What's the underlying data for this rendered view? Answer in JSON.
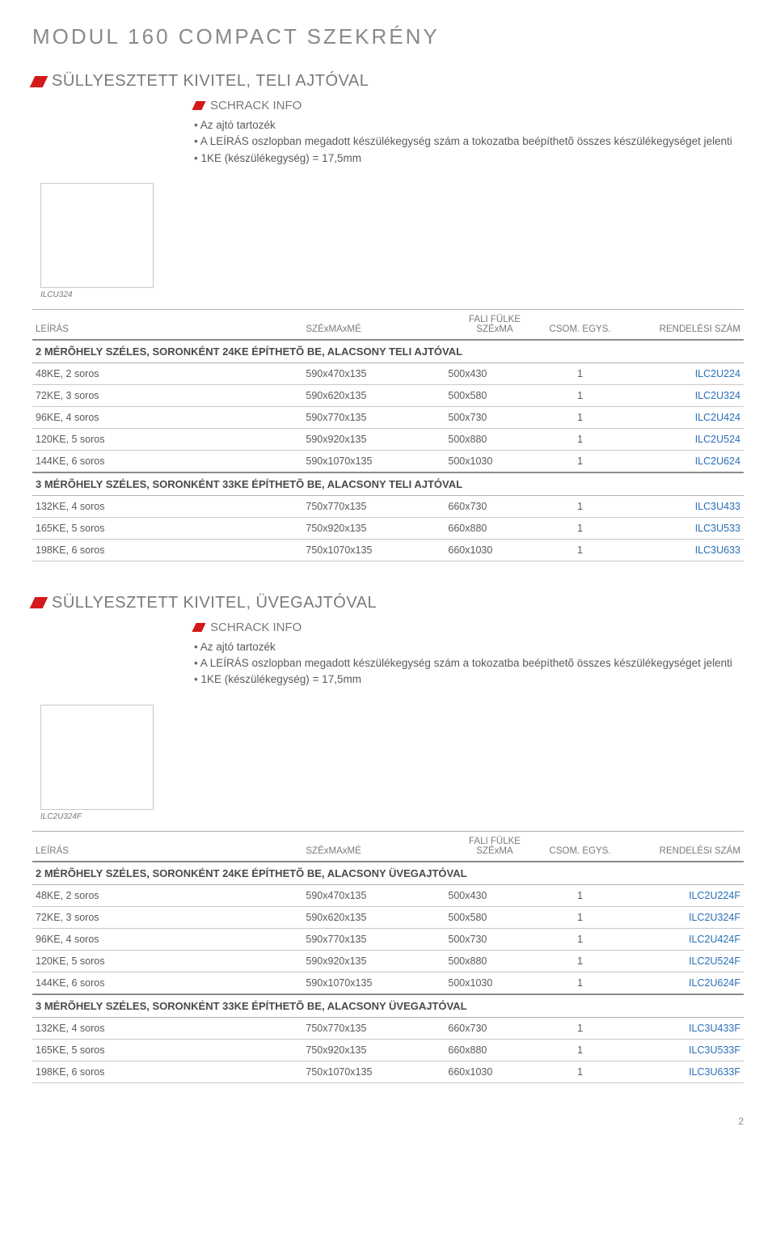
{
  "page_title": "MODUL 160 COMPACT SZEKRÉNY",
  "columns": {
    "c1": "LEÍRÁS",
    "c2": "SZÉxMAxMÉ",
    "c3_line1": "FALI FÜLKE",
    "c3_line2": "SZÉxMA",
    "c4": "CSOM. EGYS.",
    "c5": "RENDELÉSI SZÁM"
  },
  "info_label": "SCHRACK INFO",
  "bullets": [
    "Az ajtó tartozék",
    "A LEÍRÁS oszlopban megadott  készülékegység szám a tokozatba beépíthetõ összes készülékegységet jelenti",
    "1KE (készülékegység) = 17,5mm"
  ],
  "sections": [
    {
      "title": "SÜLLYESZTETT KIVITEL, TELI AJTÓVAL",
      "caption": "ILCU324",
      "groups": [
        {
          "header": "2 MÉRÕHELY SZÉLES, SORONKÉNT 24KE ÉPÍTHETÕ BE, ALACSONY TELI AJTÓVAL",
          "rows": [
            [
              "48KE, 2 soros",
              "590x470x135",
              "500x430",
              "1",
              "ILC2U224"
            ],
            [
              "72KE, 3 soros",
              "590x620x135",
              "500x580",
              "1",
              "ILC2U324"
            ],
            [
              "96KE, 4 soros",
              "590x770x135",
              "500x730",
              "1",
              "ILC2U424"
            ],
            [
              "120KE, 5 soros",
              "590x920x135",
              "500x880",
              "1",
              "ILC2U524"
            ],
            [
              "144KE, 6 soros",
              "590x1070x135",
              "500x1030",
              "1",
              "ILC2U624"
            ]
          ]
        },
        {
          "header": "3 MÉRÕHELY SZÉLES, SORONKÉNT 33KE ÉPÍTHETÕ BE, ALACSONY TELI AJTÓVAL",
          "rows": [
            [
              "132KE, 4 soros",
              "750x770x135",
              "660x730",
              "1",
              "ILC3U433"
            ],
            [
              "165KE, 5 soros",
              "750x920x135",
              "660x880",
              "1",
              "ILC3U533"
            ],
            [
              "198KE, 6 soros",
              "750x1070x135",
              "660x1030",
              "1",
              "ILC3U633"
            ]
          ]
        }
      ]
    },
    {
      "title": "SÜLLYESZTETT KIVITEL, ÜVEGAJTÓVAL",
      "caption": "ILC2U324F",
      "groups": [
        {
          "header": "2 MÉRÕHELY SZÉLES, SORONKÉNT 24KE ÉPÍTHETÕ BE, ALACSONY ÜVEGAJTÓVAL",
          "rows": [
            [
              "48KE, 2 soros",
              "590x470x135",
              "500x430",
              "1",
              "ILC2U224F"
            ],
            [
              "72KE, 3 soros",
              "590x620x135",
              "500x580",
              "1",
              "ILC2U324F"
            ],
            [
              "96KE, 4 soros",
              "590x770x135",
              "500x730",
              "1",
              "ILC2U424F"
            ],
            [
              "120KE, 5 soros",
              "590x920x135",
              "500x880",
              "1",
              "ILC2U524F"
            ],
            [
              "144KE, 6 soros",
              "590x1070x135",
              "500x1030",
              "1",
              "ILC2U624F"
            ]
          ]
        },
        {
          "header": "3 MÉRÕHELY SZÉLES, SORONKÉNT 33KE ÉPÍTHETÕ BE, ALACSONY ÜVEGAJTÓVAL",
          "rows": [
            [
              "132KE, 4 soros",
              "750x770x135",
              "660x730",
              "1",
              "ILC3U433F"
            ],
            [
              "165KE, 5 soros",
              "750x920x135",
              "660x880",
              "1",
              "ILC3U533F"
            ],
            [
              "198KE, 6 soros",
              "750x1070x135",
              "660x1030",
              "1",
              "ILC3U633F"
            ]
          ]
        }
      ]
    }
  ],
  "page_number": "2",
  "colors": {
    "accent_red": "#d31a1a",
    "link_blue": "#2a6fb5",
    "text_grey": "#5a5a5a",
    "heading_grey": "#8a8a8a",
    "border_grey": "#b0b0b0"
  }
}
